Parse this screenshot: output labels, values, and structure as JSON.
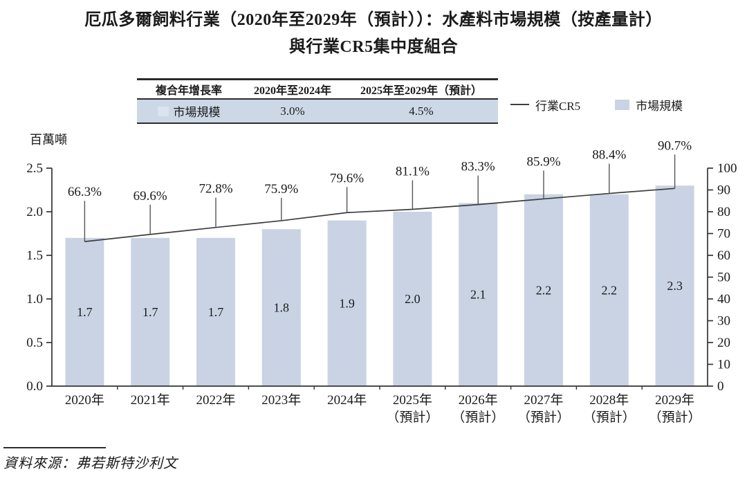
{
  "title": {
    "line1": "厄瓜多爾飼料行業（2020年至2029年（預計））：水產料市場規模（按產量計）",
    "line2": "與行業CR5集中度組合"
  },
  "cagr_table": {
    "header": [
      "複合年增長率",
      "2020年至2024年",
      "2025年至2029年（預計）"
    ],
    "row_label": "市場規模",
    "row_values": [
      "3.0%",
      "4.5%"
    ]
  },
  "legend": {
    "line_label": "行業CR5",
    "bar_label": "市場規模"
  },
  "source": "資料來源：弗若斯特沙利文",
  "colors": {
    "bar": "#c9d3e3",
    "table_row_bg": "#cdd8e6",
    "table_swatch": "#dbe3ee",
    "line": "#3c3c3c",
    "axis": "#333333",
    "leader": "#555555",
    "text": "#1a1a1a"
  },
  "chart_data": {
    "type": "combo-bar-line",
    "title": "厄瓜多爾飼料行業（2020年至2029年（預計））：水產料市場規模（按產量計）與行業CR5集中度組合",
    "categories": [
      "2020年",
      "2021年",
      "2022年",
      "2023年",
      "2024年",
      "2025年",
      "2026年",
      "2027年",
      "2028年",
      "2029年"
    ],
    "category_notes": [
      "",
      "",
      "",
      "",
      "",
      "（預計）",
      "（預計）",
      "（預計）",
      "（預計）",
      "（預計）"
    ],
    "series": [
      {
        "name": "市場規模",
        "type": "bar",
        "axis": "left",
        "values": [
          1.7,
          1.7,
          1.7,
          1.8,
          1.9,
          2.0,
          2.1,
          2.2,
          2.2,
          2.3
        ],
        "labels": [
          "1.7",
          "1.7",
          "1.7",
          "1.8",
          "1.9",
          "2.0",
          "2.1",
          "2.2",
          "2.2",
          "2.3"
        ]
      },
      {
        "name": "行業CR5",
        "type": "line",
        "axis": "right",
        "values": [
          66.3,
          69.6,
          72.8,
          75.9,
          79.6,
          81.1,
          83.3,
          85.9,
          88.4,
          90.7
        ],
        "labels": [
          "66.3%",
          "69.6%",
          "72.8%",
          "75.9%",
          "79.6%",
          "81.1%",
          "83.3%",
          "85.9%",
          "88.4%",
          "90.7%"
        ]
      }
    ],
    "left_axis": {
      "title": "百萬噸",
      "min": 0,
      "max": 2.5,
      "step": 0.5,
      "tick_labels": [
        "0.0",
        "0.5",
        "1.0",
        "1.5",
        "2.0",
        "2.5"
      ]
    },
    "right_axis": {
      "min": 0,
      "max": 100,
      "step": 10,
      "tick_labels": [
        "0",
        "10",
        "20",
        "30",
        "40",
        "50",
        "60",
        "70",
        "80",
        "90",
        "100"
      ]
    },
    "grid": false,
    "legend_position": "top-right"
  }
}
